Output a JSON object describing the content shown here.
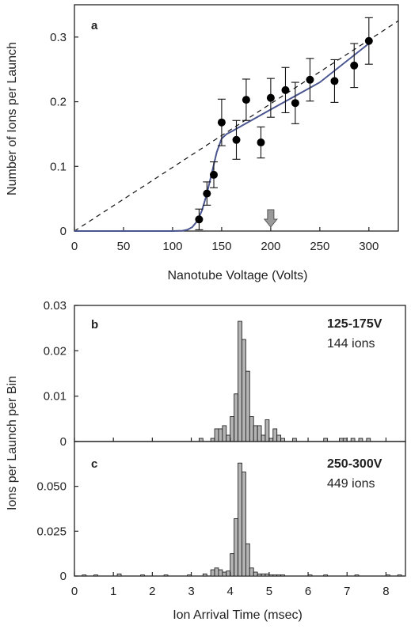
{
  "chart_data": [
    {
      "type": "scatter",
      "panel": "a",
      "xlabel": "Nanotube Voltage (Volts)",
      "ylabel": "Number of Ions per Launch",
      "xlim": [
        0,
        330
      ],
      "ylim": [
        0,
        0.35
      ],
      "xticks": [
        0,
        50,
        100,
        150,
        200,
        250,
        300
      ],
      "yticks": [
        0,
        0.1,
        0.2,
        0.3
      ],
      "ytick_labels": [
        "0",
        "0.1",
        "0.2",
        "0.3"
      ],
      "points": [
        {
          "x": 127,
          "y": 0.018,
          "err": 0.016
        },
        {
          "x": 135,
          "y": 0.058,
          "err": 0.018
        },
        {
          "x": 142,
          "y": 0.087,
          "err": 0.02
        },
        {
          "x": 150,
          "y": 0.168,
          "err": 0.036
        },
        {
          "x": 165,
          "y": 0.141,
          "err": 0.03
        },
        {
          "x": 175,
          "y": 0.203,
          "err": 0.032
        },
        {
          "x": 190,
          "y": 0.137,
          "err": 0.024
        },
        {
          "x": 200,
          "y": 0.206,
          "err": 0.03
        },
        {
          "x": 215,
          "y": 0.218,
          "err": 0.035
        },
        {
          "x": 225,
          "y": 0.198,
          "err": 0.032
        },
        {
          "x": 240,
          "y": 0.234,
          "err": 0.033
        },
        {
          "x": 265,
          "y": 0.232,
          "err": 0.033
        },
        {
          "x": 285,
          "y": 0.256,
          "err": 0.034
        },
        {
          "x": 300,
          "y": 0.294,
          "err": 0.036
        }
      ],
      "dashed_line": {
        "from": [
          0,
          0
        ],
        "to": [
          330,
          0.325
        ]
      },
      "fit_curve": [
        [
          0,
          0
        ],
        [
          100,
          0
        ],
        [
          110,
          0.0005
        ],
        [
          115,
          0.002
        ],
        [
          120,
          0.006
        ],
        [
          125,
          0.015
        ],
        [
          130,
          0.032
        ],
        [
          135,
          0.058
        ],
        [
          140,
          0.09
        ],
        [
          145,
          0.122
        ],
        [
          150,
          0.143
        ],
        [
          155,
          0.15
        ],
        [
          160,
          0.154
        ],
        [
          200,
          0.188
        ],
        [
          250,
          0.23
        ],
        [
          300,
          0.29
        ]
      ],
      "marker": {
        "x": 200,
        "shape": "arrow-down"
      },
      "grid": false
    },
    {
      "type": "bar",
      "panel": "b",
      "annotation_title": "125-175V",
      "annotation_count": "144 ions",
      "xlim": [
        0,
        8.5
      ],
      "ylim": [
        0,
        0.03
      ],
      "yticks": [
        0,
        0.01,
        0.02,
        0.03
      ],
      "ytick_labels": [
        "0",
        "0.01",
        "0.02",
        "0.03"
      ],
      "bin_width": 0.1,
      "bins": [
        {
          "x": 3.2,
          "y": 0.0007
        },
        {
          "x": 3.5,
          "y": 0.0007
        },
        {
          "x": 3.6,
          "y": 0.0028
        },
        {
          "x": 3.7,
          "y": 0.0028
        },
        {
          "x": 3.8,
          "y": 0.0035
        },
        {
          "x": 3.9,
          "y": 0.0014
        },
        {
          "x": 4.0,
          "y": 0.0055
        },
        {
          "x": 4.1,
          "y": 0.0105
        },
        {
          "x": 4.2,
          "y": 0.0265
        },
        {
          "x": 4.3,
          "y": 0.0225
        },
        {
          "x": 4.4,
          "y": 0.0155
        },
        {
          "x": 4.5,
          "y": 0.0055
        },
        {
          "x": 4.6,
          "y": 0.0035
        },
        {
          "x": 4.7,
          "y": 0.0035
        },
        {
          "x": 4.8,
          "y": 0.0014
        },
        {
          "x": 4.9,
          "y": 0.0048
        },
        {
          "x": 5.0,
          "y": 0.0007
        },
        {
          "x": 5.1,
          "y": 0.0028
        },
        {
          "x": 5.2,
          "y": 0.0014
        },
        {
          "x": 5.3,
          "y": 0.0007
        },
        {
          "x": 5.6,
          "y": 0.0007
        },
        {
          "x": 6.4,
          "y": 0.0007
        },
        {
          "x": 6.8,
          "y": 0.0007
        },
        {
          "x": 6.9,
          "y": 0.0007
        },
        {
          "x": 7.1,
          "y": 0.0007
        },
        {
          "x": 7.3,
          "y": 0.0007
        },
        {
          "x": 7.5,
          "y": 0.0007
        }
      ],
      "grid": false
    },
    {
      "type": "bar",
      "panel": "c",
      "annotation_title": "250-300V",
      "annotation_count": "449 ions",
      "xlabel": "Ion Arrival Time (msec)",
      "ylabel": "Ions per Launch per Bin",
      "xlim": [
        0,
        8.5
      ],
      "ylim": [
        0,
        0.075
      ],
      "xticks": [
        0,
        1,
        2,
        3,
        4,
        5,
        6,
        7,
        8
      ],
      "yticks": [
        0,
        0.025,
        0.05
      ],
      "ytick_labels": [
        "0",
        "0.025",
        "0.050"
      ],
      "bin_width": 0.1,
      "bins": [
        {
          "x": 0.2,
          "y": 0.0006
        },
        {
          "x": 0.5,
          "y": 0.0006
        },
        {
          "x": 1.1,
          "y": 0.0012
        },
        {
          "x": 1.7,
          "y": 0.0006
        },
        {
          "x": 2.3,
          "y": 0.0006
        },
        {
          "x": 2.9,
          "y": 0.0006
        },
        {
          "x": 3.3,
          "y": 0.0012
        },
        {
          "x": 3.5,
          "y": 0.0035
        },
        {
          "x": 3.6,
          "y": 0.0045
        },
        {
          "x": 3.7,
          "y": 0.0035
        },
        {
          "x": 3.8,
          "y": 0.0022
        },
        {
          "x": 3.9,
          "y": 0.0028
        },
        {
          "x": 4.0,
          "y": 0.0125
        },
        {
          "x": 4.1,
          "y": 0.032
        },
        {
          "x": 4.2,
          "y": 0.063
        },
        {
          "x": 4.3,
          "y": 0.058
        },
        {
          "x": 4.4,
          "y": 0.018
        },
        {
          "x": 4.5,
          "y": 0.0045
        },
        {
          "x": 4.6,
          "y": 0.0022
        },
        {
          "x": 4.7,
          "y": 0.0012
        },
        {
          "x": 4.8,
          "y": 0.0012
        },
        {
          "x": 4.9,
          "y": 0.0012
        },
        {
          "x": 5.0,
          "y": 0.0006
        },
        {
          "x": 5.1,
          "y": 0.0006
        },
        {
          "x": 5.2,
          "y": 0.0006
        },
        {
          "x": 5.3,
          "y": 0.0006
        },
        {
          "x": 6.0,
          "y": 0.0006
        },
        {
          "x": 6.4,
          "y": 0.0006
        },
        {
          "x": 7.2,
          "y": 0.0006
        },
        {
          "x": 8.0,
          "y": 0.0006
        },
        {
          "x": 8.3,
          "y": 0.0006
        }
      ],
      "grid": false
    }
  ],
  "colors": {
    "axis": "#222222",
    "point": "#000000",
    "fit_curve": "#4a5590",
    "bar_fill": "#b3b3b3",
    "bar_stroke": "#111111",
    "arrow_fill": "#9a9a9a"
  }
}
